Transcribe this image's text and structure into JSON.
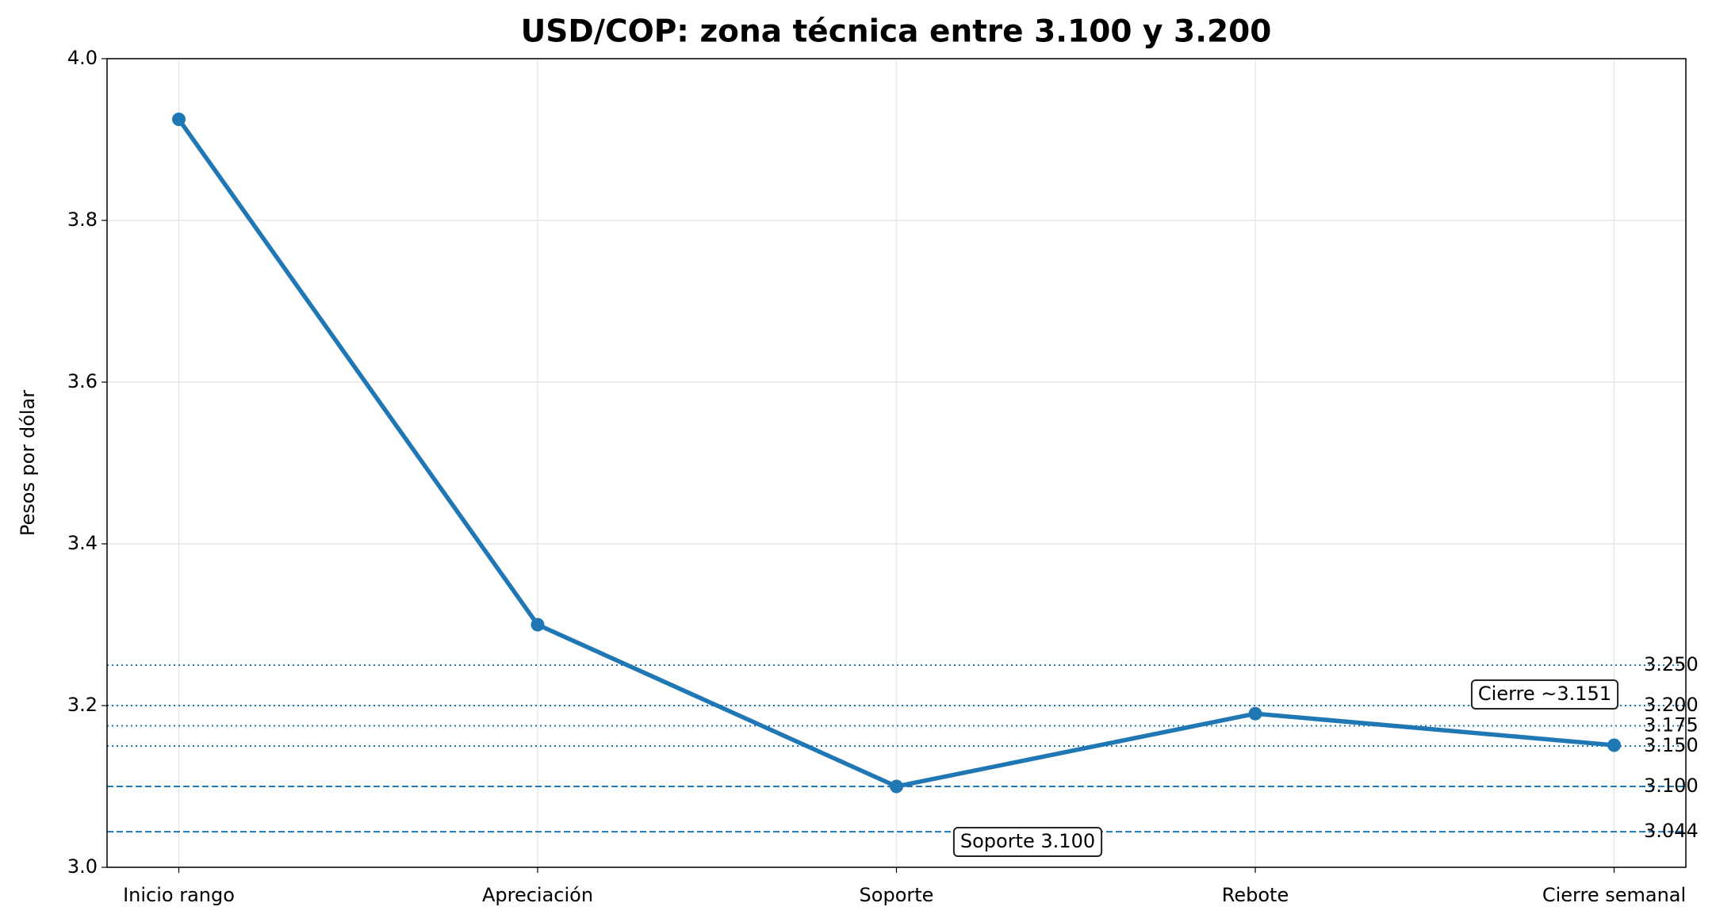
{
  "chart_data": {
    "type": "line",
    "title": "USD/COP: zona técnica entre 3.100 y 3.200",
    "y_label": "Pesos por dólar",
    "categories": [
      "Inicio rango",
      "Apreciación",
      "Soporte",
      "Rebote",
      "Cierre semanal"
    ],
    "values": [
      3.925,
      3.3,
      3.1,
      3.19,
      3.151
    ],
    "color": "#1f77b4",
    "ylim": [
      3.0,
      4.0
    ],
    "yticks": [
      {
        "value": 3.0,
        "label": "3.0"
      },
      {
        "value": 3.2,
        "label": "3.2"
      },
      {
        "value": 3.4,
        "label": "3.4"
      },
      {
        "value": 3.6,
        "label": "3.6"
      },
      {
        "value": 3.8,
        "label": "3.8"
      },
      {
        "value": 4.0,
        "label": "4.0"
      }
    ],
    "grid": true,
    "reference_lines": [
      {
        "value": 3.25,
        "label": "3.250",
        "style": "dotted"
      },
      {
        "value": 3.2,
        "label": "3.200",
        "style": "dotted"
      },
      {
        "value": 3.175,
        "label": "3.175",
        "style": "dotted"
      },
      {
        "value": 3.15,
        "label": "3.150",
        "style": "dotted"
      },
      {
        "value": 3.1,
        "label": "3.100",
        "style": "dashed"
      },
      {
        "value": 3.044,
        "label": "3.044",
        "style": "dashed"
      }
    ],
    "annotations": [
      {
        "text": "Cierre ~3.151"
      },
      {
        "text": "Soporte 3.100"
      }
    ]
  }
}
